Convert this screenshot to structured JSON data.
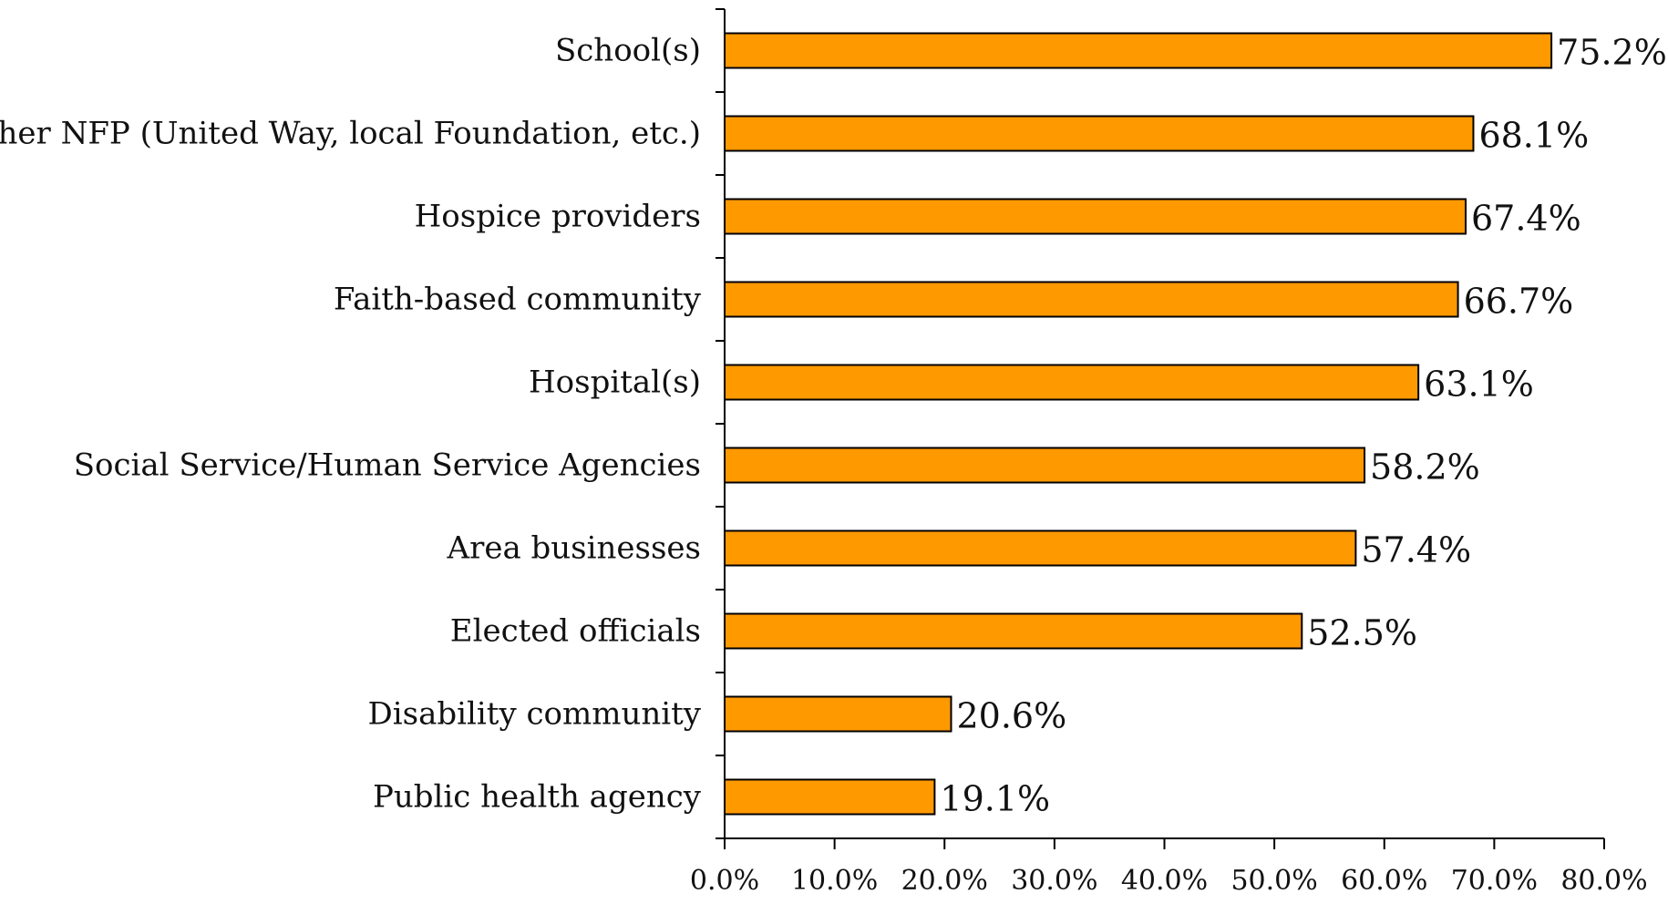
{
  "chart_data": {
    "type": "bar",
    "orientation": "horizontal",
    "categories": [
      "School(s)",
      "Other NFP (United Way, local Foundation, etc.)",
      "Hospice providers",
      "Faith-based community",
      "Hospital(s)",
      "Social Service/Human Service Agencies",
      "Area businesses",
      "Elected officials",
      "Disability community",
      "Public health agency"
    ],
    "values": [
      75.2,
      68.1,
      67.4,
      66.7,
      63.1,
      58.2,
      57.4,
      52.5,
      20.6,
      19.1
    ],
    "value_labels": [
      "75.2%",
      "68.1%",
      "67.4%",
      "66.7%",
      "63.1%",
      "58.2%",
      "57.4%",
      "52.5%",
      "20.6%",
      "19.1%"
    ],
    "x_ticks": [
      "0.0%",
      "10.0%",
      "20.0%",
      "30.0%",
      "40.0%",
      "50.0%",
      "60.0%",
      "70.0%",
      "80.0%"
    ],
    "xlim": [
      0,
      80
    ],
    "title": "",
    "xlabel": "",
    "ylabel": "",
    "grid": false,
    "legend": "none",
    "bar_color": "#FF9900",
    "bar_edge_color": "#000000"
  }
}
